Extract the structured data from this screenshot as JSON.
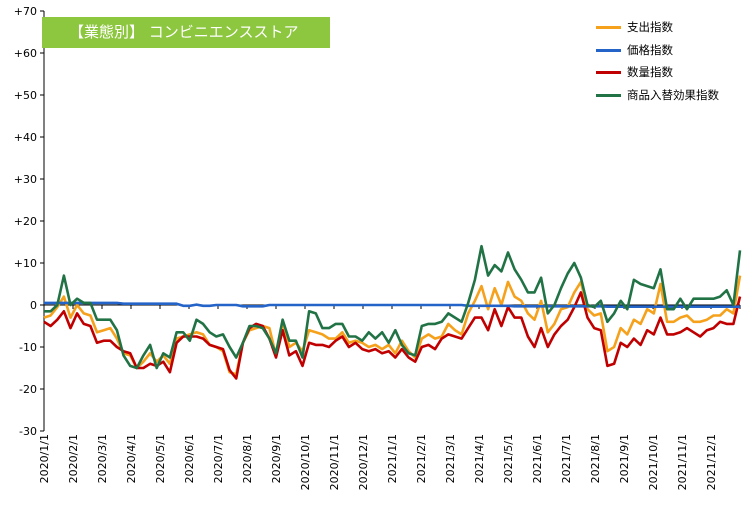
{
  "chart_data": {
    "type": "line",
    "title": "【業態別】 コンビニエンスストア",
    "ylim": [
      -30,
      70
    ],
    "y_ticks": [
      "+70",
      "+60",
      "+50",
      "+40",
      "+30",
      "+20",
      "+10",
      "0",
      "-10",
      "-20",
      "-30"
    ],
    "x_tick_labels": [
      "2020/1/1",
      "2020/2/1",
      "2020/3/1",
      "2020/4/1",
      "2020/5/1",
      "2020/6/1",
      "2020/7/1",
      "2020/8/1",
      "2020/9/1",
      "2020/10/1",
      "2020/11/1",
      "2020/12/1",
      "2021/1/1",
      "2021/2/1",
      "2021/3/1",
      "2021/4/1",
      "2021/5/1",
      "2021/6/1",
      "2021/7/1",
      "2021/8/1",
      "2021/9/1",
      "2021/10/1",
      "2021/11/1",
      "2021/12/1"
    ],
    "legend_position": "top-right",
    "grid": false,
    "series": [
      {
        "name": "支出指数",
        "color": "#f5a11c",
        "values": [
          -3,
          -2.5,
          -0.5,
          2,
          -3,
          0,
          -2,
          -2.5,
          -6.5,
          -6,
          -5.5,
          -8,
          -11.5,
          -12,
          -15,
          -13.5,
          -11.5,
          -13.5,
          -12,
          -14,
          -8,
          -7.5,
          -7,
          -6.5,
          -7,
          -9.5,
          -10,
          -11,
          -16,
          -16.5,
          -9,
          -6,
          -5.5,
          -5,
          -5.5,
          -12,
          -4,
          -10,
          -9,
          -11,
          -6,
          -6.5,
          -7,
          -8,
          -8,
          -6.5,
          -9,
          -8.5,
          -9,
          -10,
          -9.5,
          -10.5,
          -9.5,
          -11.5,
          -8.5,
          -11,
          -12.5,
          -8,
          -7,
          -8,
          -7.5,
          -4.5,
          -6,
          -7,
          -2,
          1,
          4.5,
          -1,
          4,
          0,
          5.5,
          2,
          1,
          -2,
          -3.5,
          1,
          -6.5,
          -4.5,
          -1,
          -0.5,
          3,
          5.5,
          -1,
          -2.5,
          -2,
          -11,
          -10,
          -5.5,
          -7,
          -3.5,
          -4.5,
          -1,
          -2,
          5,
          -4,
          -4,
          -3,
          -2.5,
          -4,
          -4,
          -3.5,
          -2.5,
          -2.5,
          -1,
          -2,
          7
        ]
      },
      {
        "name": "価格指数",
        "color": "#2463c7",
        "values": [
          0.5,
          0.5,
          0.5,
          0.5,
          0.5,
          0.5,
          0.5,
          0.5,
          0.5,
          0.5,
          0.5,
          0.5,
          0.3,
          0.3,
          0.3,
          0.3,
          0.3,
          0.3,
          0.3,
          0.3,
          0.3,
          -0.2,
          -0.2,
          0.1,
          -0.2,
          -0.2,
          0,
          0,
          0,
          0,
          -0.3,
          -0.3,
          -0.3,
          -0.3,
          0,
          0,
          0,
          0,
          0,
          0,
          0,
          0,
          0,
          0,
          0,
          0,
          0,
          0,
          0,
          0,
          0,
          0,
          0,
          0,
          0,
          0,
          0,
          0,
          0,
          0,
          0,
          0,
          0,
          0,
          -0.2,
          -0.2,
          -0.2,
          -0.2,
          -0.2,
          -0.2,
          -0.2,
          -0.3,
          -0.3,
          -0.3,
          -0.3,
          -0.3,
          -0.3,
          -0.3,
          -0.3,
          -0.3,
          -0.3,
          -0.3,
          -0.3,
          -0.3,
          -0.3,
          -0.4,
          -0.4,
          -0.4,
          -0.4,
          -0.4,
          -0.4,
          -0.4,
          -0.4,
          -0.4,
          -0.4,
          -0.4,
          -0.4,
          -0.4,
          -0.4,
          -0.4,
          -0.4,
          -0.4,
          -0.4,
          -0.4,
          -0.4,
          -0.4
        ]
      },
      {
        "name": "数量指数",
        "color": "#c00000",
        "values": [
          -4,
          -5,
          -3.5,
          -1.5,
          -5.5,
          -2,
          -4.5,
          -5,
          -9,
          -8.5,
          -8.5,
          -10,
          -11,
          -11.5,
          -15,
          -15,
          -14,
          -14.5,
          -13.5,
          -16,
          -9,
          -7.5,
          -7.5,
          -7.5,
          -8,
          -9.5,
          -10,
          -10.5,
          -15.5,
          -17.5,
          -9,
          -5.5,
          -4.5,
          -5,
          -8,
          -12.5,
          -6,
          -12,
          -11,
          -14.5,
          -9,
          -9.5,
          -9.5,
          -10,
          -8.5,
          -7.5,
          -10,
          -9,
          -10.5,
          -11,
          -10.5,
          -11.5,
          -11,
          -12.5,
          -10.5,
          -12.5,
          -13.5,
          -10,
          -9.5,
          -10.5,
          -8,
          -7,
          -7.5,
          -8,
          -5.5,
          -3,
          -3,
          -6,
          -1,
          -5,
          -0.5,
          -3,
          -3,
          -7.5,
          -10,
          -5.5,
          -10,
          -7,
          -5,
          -3.5,
          -0.5,
          3,
          -3,
          -5.5,
          -6,
          -14.5,
          -14,
          -9,
          -10,
          -8,
          -9.5,
          -6,
          -7,
          -3,
          -7,
          -7,
          -6.5,
          -5.5,
          -6.5,
          -7.5,
          -6,
          -5.5,
          -4,
          -4.5,
          -4.5,
          2
        ]
      },
      {
        "name": "商品入替効果指数",
        "color": "#217346",
        "values": [
          -1.5,
          -1.5,
          0,
          7,
          0,
          1.5,
          0.5,
          0.5,
          -3.5,
          -3.5,
          -3.5,
          -6,
          -12,
          -14.5,
          -15,
          -12,
          -9.5,
          -15,
          -11.5,
          -12.5,
          -6.5,
          -6.5,
          -8.5,
          -3.5,
          -4.5,
          -6.5,
          -7.5,
          -7,
          -10,
          -12.5,
          -9,
          -5,
          -5,
          -5.5,
          -8,
          -11.5,
          -3.5,
          -8.5,
          -8.5,
          -12.5,
          -1.5,
          -2,
          -5.5,
          -5.5,
          -4.5,
          -4.5,
          -7.5,
          -7.5,
          -8.5,
          -6.5,
          -8,
          -6.5,
          -9,
          -6,
          -9.5,
          -11.5,
          -12,
          -5,
          -4.5,
          -4.5,
          -4,
          -2,
          -3,
          -4,
          0.5,
          6,
          14,
          7,
          9.5,
          8,
          12.5,
          8.5,
          6,
          3,
          3,
          6.5,
          -2,
          0,
          4,
          7.5,
          10,
          6.5,
          0,
          -0.5,
          1,
          -4,
          -2,
          1,
          -1,
          6,
          5,
          4.5,
          4,
          8.5,
          -1,
          -1,
          1.5,
          -1,
          1.5,
          1.5,
          1.5,
          1.5,
          2,
          3.5,
          0,
          13
        ]
      }
    ]
  }
}
